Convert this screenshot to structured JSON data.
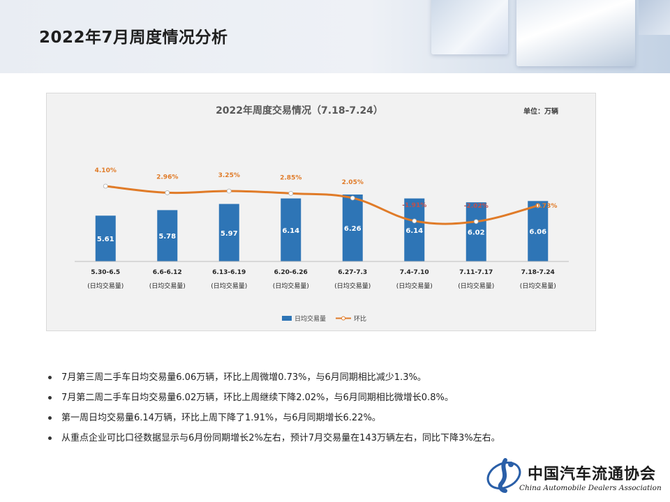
{
  "page": {
    "title": "2022年7月周度情况分析"
  },
  "chart_data": {
    "type": "bar",
    "title": "2022年周度交易情况（7.18-7.24）",
    "unit": "单位：万辆",
    "categories": [
      "5.30-6.5",
      "6.6-6.12",
      "6.13-6.19",
      "6.20-6.26",
      "6.27-7.3",
      "7.4-7.10",
      "7.11-7.17",
      "7.18-7.24"
    ],
    "category_sub": "(日均交易量)",
    "series": [
      {
        "name": "日均交易量",
        "type": "bar",
        "color": "#2e75b6",
        "values": [
          5.61,
          5.78,
          5.97,
          6.14,
          6.26,
          6.14,
          6.02,
          6.06
        ],
        "labels": [
          "5.61",
          "5.78",
          "5.97",
          "6.14",
          "6.26",
          "6.14",
          "6.02",
          "6.06"
        ]
      },
      {
        "name": "环比",
        "type": "line",
        "color": "#e07b28",
        "values": [
          4.1,
          2.96,
          3.25,
          2.85,
          2.05,
          -1.91,
          -2.02,
          0.73
        ],
        "labels": [
          "4.10%",
          "2.96%",
          "3.25%",
          "2.85%",
          "2.05%",
          "-1.91%",
          "-2.02%",
          "0.73%"
        ]
      }
    ],
    "legend_position": "bottom",
    "grid": false
  },
  "notes": [
    "7月第三周二手车日均交易量6.06万辆，环比上周微增0.73%，与6月同期相比减少1.3%。",
    "7月第二周二手车日均交易量6.02万辆，环比上周继续下降2.02%，与6月同期相比微增长0.8%。",
    "第一周日均交易量6.14万辆，环比上周下降了1.91%，与6月同期增长6.22%。",
    "从重点企业可比口径数据显示与6月份同期增长2%左右，预计7月交易量在143万辆左右，同比下降3%左右。"
  ],
  "footer": {
    "org_name": "中国汽车流通协会",
    "org_name_en": "China Automobile Dealers Association",
    "emblem_icon": "cada-emblem-icon"
  }
}
